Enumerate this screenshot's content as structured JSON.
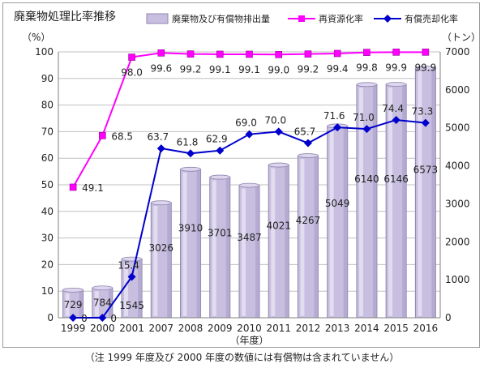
{
  "header": {
    "title": "廃棄物処理比率推移",
    "note": "（注 1999 年度及び 2000 年度の数値には有償物は含まれていません）"
  },
  "colors": {
    "bar_fill": "#c8bfe0",
    "bar_stroke": "#8e86ae",
    "recycling": "#ff00ff",
    "paid_sale": "#0000cc",
    "grid": "#c0c0c0"
  },
  "chart_data": {
    "type": "bar",
    "title": "廃棄物処理比率推移",
    "xlabel": "（年度）",
    "ylabel_left": "（%）",
    "ylabel_right": "（トン）",
    "categories": [
      "1999",
      "2000",
      "2001",
      "2007",
      "2008",
      "2009",
      "2010",
      "2011",
      "2012",
      "2013",
      "2014",
      "2015",
      "2016"
    ],
    "ylim_left": [
      0,
      100
    ],
    "ylim_right": [
      0,
      7000
    ],
    "yticks_left": [
      "0",
      "10",
      "20",
      "30",
      "40",
      "50",
      "60",
      "70",
      "80",
      "90",
      "100"
    ],
    "yticks_right": [
      "0",
      "1000",
      "2000",
      "3000",
      "4000",
      "5000",
      "6000",
      "7000"
    ],
    "grid": true,
    "legend_position": "top",
    "series": [
      {
        "name": "廃棄物及び有償物排出量",
        "type": "bar",
        "axis": "right",
        "color": "#c8bfe0",
        "values": [
          729,
          784,
          1545,
          3026,
          3910,
          3701,
          3487,
          4021,
          4267,
          5049,
          6140,
          6146,
          6573
        ],
        "labels": [
          "729",
          "784",
          "1545",
          "3026",
          "3910",
          "3701",
          "3487",
          "4021",
          "4267",
          "5049",
          "6140",
          "6146",
          "6573"
        ]
      },
      {
        "name": "再資源化率",
        "type": "line",
        "axis": "left",
        "color": "#ff00ff",
        "marker": "square",
        "values": [
          49.1,
          68.5,
          98.0,
          99.6,
          99.2,
          99.1,
          99.1,
          99.0,
          99.2,
          99.4,
          99.8,
          99.9,
          99.9
        ],
        "labels": [
          "49.1",
          "68.5",
          "98.0",
          "99.6",
          "99.2",
          "99.1",
          "99.1",
          "99.0",
          "99.2",
          "99.4",
          "99.8",
          "99.9",
          "99.9"
        ]
      },
      {
        "name": "有償売却化率",
        "type": "line",
        "axis": "left",
        "color": "#0000cc",
        "marker": "diamond",
        "values": [
          0,
          0,
          15.4,
          63.7,
          61.8,
          62.9,
          69.0,
          70.0,
          65.7,
          71.6,
          71.0,
          74.4,
          73.3
        ],
        "labels": [
          "0",
          "0",
          "15.4",
          "63.7",
          "61.8",
          "62.9",
          "69.0",
          "70.0",
          "65.7",
          "71.6",
          "71.0",
          "74.4",
          "73.3"
        ]
      }
    ]
  }
}
